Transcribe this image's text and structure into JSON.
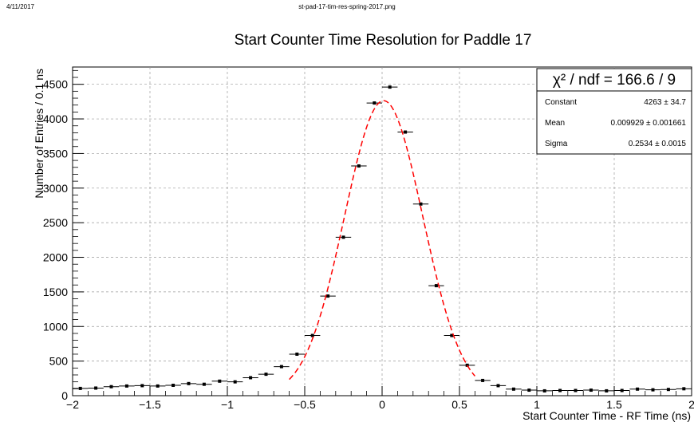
{
  "header": {
    "date": "4/11/2017",
    "filename": "st-pad-17-tim-res-spring-2017.png"
  },
  "stats": {
    "chi2_label": "χ² / ndf = 166.6 / 9",
    "rows": [
      {
        "label": "Constant",
        "value": "4263 ± 34.7"
      },
      {
        "label": "Mean",
        "value": "0.009929 ± 0.001661"
      },
      {
        "label": "Sigma",
        "value": "0.2534 ± 0.0015"
      }
    ]
  },
  "colors": {
    "fit": "#ff0000",
    "points": "#000000",
    "grid": "#9a9a9a"
  },
  "chart_data": {
    "type": "scatter",
    "title": "Start Counter Time Resolution for Paddle 17",
    "xlabel": "Start Counter Time - RF Time (ns)",
    "ylabel": "Number of Entries / 0.1 ns",
    "xlim": [
      -2,
      2
    ],
    "ylim": [
      0,
      4750
    ],
    "xticks": [
      -2,
      -1.5,
      -1,
      -0.5,
      0,
      0.5,
      1,
      1.5,
      2
    ],
    "xtick_labels": [
      "−2",
      "−1.5",
      "−1",
      "−0.5",
      "0",
      "0.5",
      "1",
      "1.5",
      "2"
    ],
    "yticks": [
      0,
      500,
      1000,
      1500,
      2000,
      2500,
      3000,
      3500,
      4000,
      4500
    ],
    "ytick_labels": [
      "0",
      "500",
      "1000",
      "1500",
      "2000",
      "2500",
      "3000",
      "3500",
      "4000",
      "4500"
    ],
    "grid": true,
    "series": [
      {
        "x": [
          -1.95,
          -1.85,
          -1.75,
          -1.65,
          -1.55,
          -1.45,
          -1.35,
          -1.25,
          -1.15,
          -1.05,
          -0.95,
          -0.85,
          -0.75,
          -0.65,
          -0.55,
          -0.45,
          -0.35,
          -0.25,
          -0.15,
          -0.05,
          0.05,
          0.15,
          0.25,
          0.35,
          0.45,
          0.55,
          0.65,
          0.75,
          0.85,
          0.95,
          1.05,
          1.15,
          1.25,
          1.35,
          1.45,
          1.55,
          1.65,
          1.75,
          1.85,
          1.95
        ],
        "values": [
          105,
          110,
          130,
          140,
          145,
          140,
          150,
          175,
          165,
          210,
          200,
          260,
          310,
          420,
          600,
          870,
          1440,
          2290,
          3320,
          4230,
          4460,
          3810,
          2770,
          1590,
          870,
          440,
          220,
          145,
          95,
          80,
          70,
          75,
          75,
          80,
          70,
          75,
          95,
          85,
          90,
          100
        ]
      }
    ],
    "fit": {
      "function": "gaus",
      "constant": 4263,
      "mean": 0.009929,
      "sigma": 0.2534,
      "range": [
        -0.6,
        0.6
      ]
    }
  }
}
